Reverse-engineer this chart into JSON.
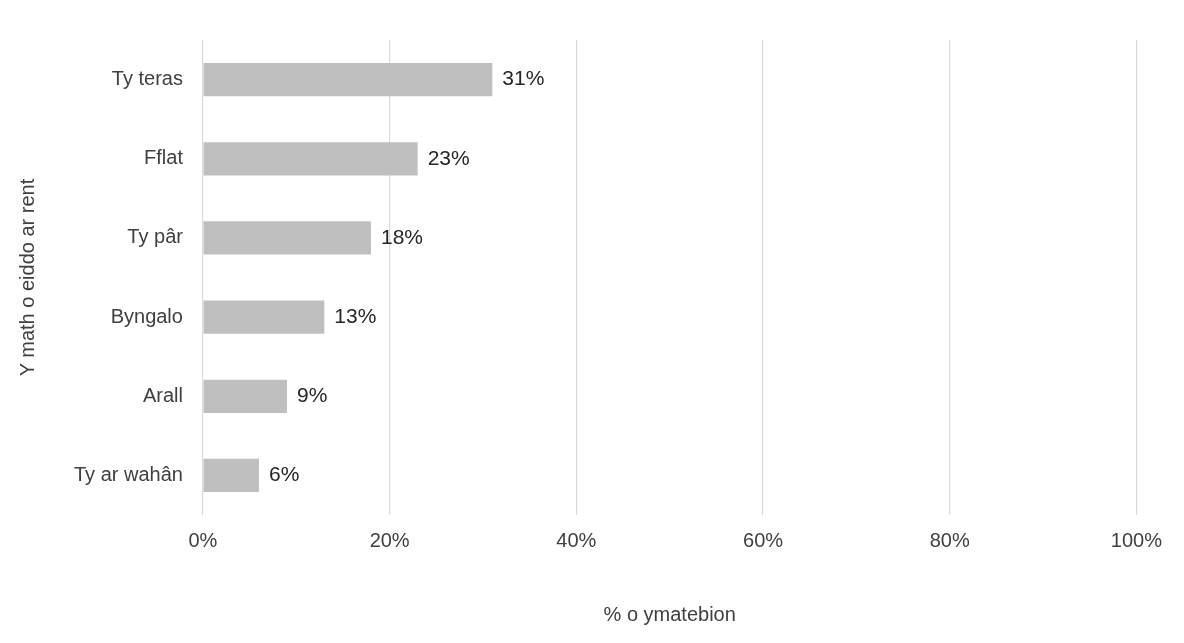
{
  "chart_data": {
    "type": "bar",
    "orientation": "horizontal",
    "xlabel": "% o ymatebion",
    "ylabel": "Y math o eiddo ar rent",
    "categories": [
      "Ty teras",
      "Fflat",
      "Ty pâr",
      "Byngalo",
      "Arall",
      "Ty ar wahân"
    ],
    "values": [
      31,
      23,
      18,
      13,
      9,
      6
    ],
    "value_labels": [
      "31%",
      "23%",
      "18%",
      "13%",
      "9%",
      "6%"
    ],
    "color": "#bfbfbf",
    "xlim": [
      0,
      100
    ],
    "xticks": [
      {
        "value": 0,
        "label": "0%"
      },
      {
        "value": 20,
        "label": "20%"
      },
      {
        "value": 40,
        "label": "40%"
      },
      {
        "value": 60,
        "label": "60%"
      },
      {
        "value": 80,
        "label": "80%"
      },
      {
        "value": 100,
        "label": "100%"
      }
    ],
    "grid": "x",
    "legend": false
  }
}
